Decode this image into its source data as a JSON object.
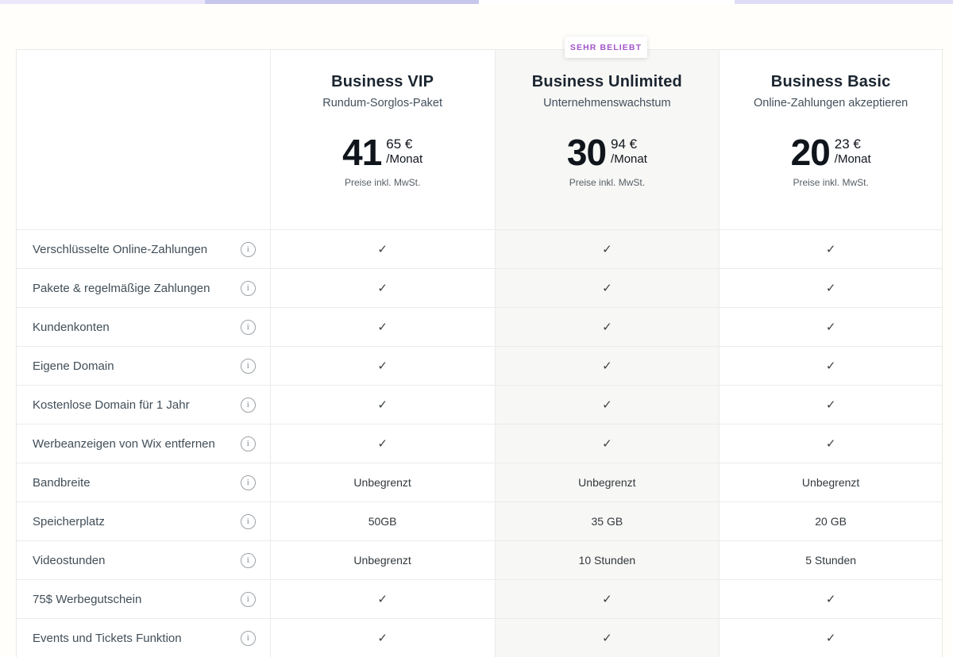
{
  "page": {
    "top_strip_colors": [
      "#e9e7f9",
      "#c7c7ee",
      "#ffffff",
      "#dedcf6"
    ]
  },
  "badge": {
    "label": "SEHR BELIEBT",
    "color": "#a355c9"
  },
  "plans": [
    {
      "name": "Business VIP",
      "tagline": "Rundum-Sorglos-Paket",
      "price_whole": "41",
      "price_cents": "65 €",
      "price_period": "/Monat",
      "vat_note": "Preise inkl. MwSt.",
      "highlighted": false
    },
    {
      "name": "Business Unlimited",
      "tagline": "Unternehmenswachstum",
      "price_whole": "30",
      "price_cents": "94 €",
      "price_period": "/Monat",
      "vat_note": "Preise inkl. MwSt.",
      "highlighted": true
    },
    {
      "name": "Business Basic",
      "tagline": "Online-Zahlungen akzeptieren",
      "price_whole": "20",
      "price_cents": "23 €",
      "price_period": "/Monat",
      "vat_note": "Preise inkl. MwSt.",
      "highlighted": false
    }
  ],
  "features": [
    {
      "label": "Verschlüsselte Online-Zahlungen",
      "values": [
        "✓",
        "✓",
        "✓"
      ]
    },
    {
      "label": "Pakete & regelmäßige Zahlungen",
      "values": [
        "✓",
        "✓",
        "✓"
      ]
    },
    {
      "label": "Kundenkonten",
      "values": [
        "✓",
        "✓",
        "✓"
      ]
    },
    {
      "label": "Eigene Domain",
      "values": [
        "✓",
        "✓",
        "✓"
      ]
    },
    {
      "label": "Kostenlose Domain für 1 Jahr",
      "values": [
        "✓",
        "✓",
        "✓"
      ]
    },
    {
      "label": "Werbeanzeigen von Wix entfernen",
      "values": [
        "✓",
        "✓",
        "✓"
      ]
    },
    {
      "label": "Bandbreite",
      "values": [
        "Unbegrenzt",
        "Unbegrenzt",
        "Unbegrenzt"
      ]
    },
    {
      "label": "Speicherplatz",
      "values": [
        "50GB",
        "35 GB",
        "20 GB"
      ]
    },
    {
      "label": "Videostunden",
      "values": [
        "Unbegrenzt",
        "10 Stunden",
        "5 Stunden"
      ]
    },
    {
      "label": "75$ Werbegutschein",
      "values": [
        "✓",
        "✓",
        "✓"
      ]
    },
    {
      "label": "Events und Tickets Funktion",
      "values": [
        "✓",
        "✓",
        "✓"
      ]
    }
  ]
}
